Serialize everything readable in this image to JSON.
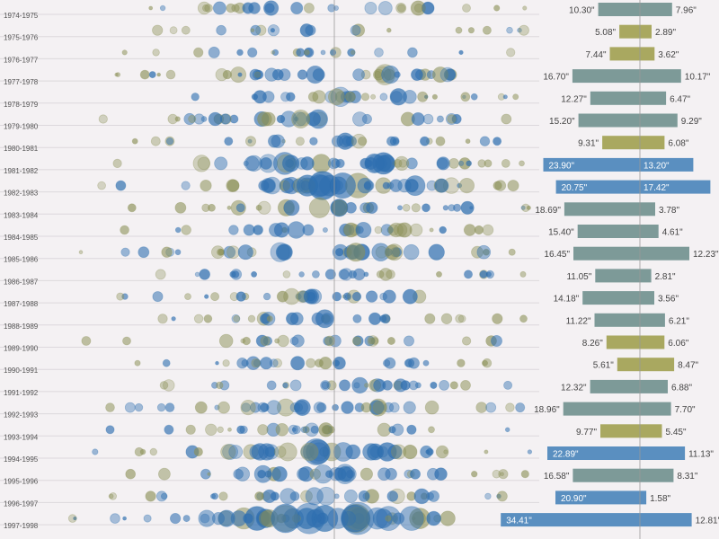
{
  "colors": {
    "background": "#f4f1f3",
    "wet_blue": "#2f6fb0",
    "dry_olive": "#8a8f55",
    "bar_strong": "#5a8fc0",
    "bar_mid": "#7d9a98",
    "bar_weak": "#a9a860"
  },
  "chart_data": {
    "type": "bubble-timeline-with-diverging-bars",
    "title": "",
    "xlabel": "",
    "ylabel": "",
    "units": "\"",
    "seasons": [
      {
        "label": "1974-1975",
        "left": 10.3,
        "right": 7.96
      },
      {
        "label": "1975-1976",
        "left": 5.08,
        "right": 2.89
      },
      {
        "label": "1976-1977",
        "left": 7.44,
        "right": 3.62
      },
      {
        "label": "1977-1978",
        "left": 16.7,
        "right": 10.17
      },
      {
        "label": "1978-1979",
        "left": 12.27,
        "right": 6.47
      },
      {
        "label": "1979-1980",
        "left": 15.2,
        "right": 9.29
      },
      {
        "label": "1980-1981",
        "left": 9.31,
        "right": 6.08
      },
      {
        "label": "1981-1982",
        "left": 23.9,
        "right": 13.2
      },
      {
        "label": "1982-1983",
        "left": 20.75,
        "right": 17.42
      },
      {
        "label": "1983-1984",
        "left": 18.69,
        "right": 3.78
      },
      {
        "label": "1984-1985",
        "left": 15.4,
        "right": 4.61
      },
      {
        "label": "1985-1986",
        "left": 16.45,
        "right": 12.23
      },
      {
        "label": "1986-1987",
        "left": 11.05,
        "right": 2.81
      },
      {
        "label": "1987-1988",
        "left": 14.18,
        "right": 3.56
      },
      {
        "label": "1988-1989",
        "left": 11.22,
        "right": 6.21
      },
      {
        "label": "1989-1990",
        "left": 8.26,
        "right": 6.06
      },
      {
        "label": "1990-1991",
        "left": 5.61,
        "right": 8.47
      },
      {
        "label": "1991-1992",
        "left": 12.32,
        "right": 6.88
      },
      {
        "label": "1992-1993",
        "left": 18.96,
        "right": 7.7
      },
      {
        "label": "1993-1994",
        "left": 9.77,
        "right": 5.45
      },
      {
        "label": "1994-1995",
        "left": 22.89,
        "right": 11.13
      },
      {
        "label": "1995-1996",
        "left": 16.58,
        "right": 8.31
      },
      {
        "label": "1996-1997",
        "left": 20.9,
        "right": 1.58
      },
      {
        "label": "1997-1998",
        "left": 34.41,
        "right": 12.81
      }
    ]
  }
}
